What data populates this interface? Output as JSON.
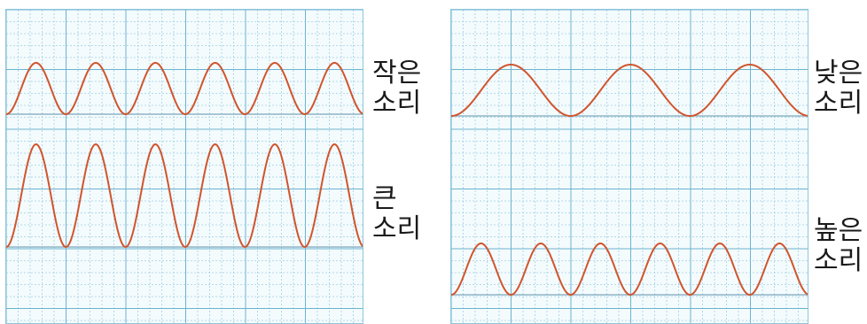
{
  "colors": {
    "grid_minor": "#9fd0e3",
    "grid_major": "#6bb3cf",
    "baseline": "#7aa6bb",
    "wave": "#d0552e",
    "text": "#1a1a1a"
  },
  "left_panel": {
    "waves": [
      {
        "id": "quiet",
        "label_line1": "작은",
        "label_line2": "소리",
        "cycles": 6,
        "relative_amplitude": 0.5
      },
      {
        "id": "loud",
        "label_line1": "큰",
        "label_line2": "소리",
        "cycles": 6,
        "relative_amplitude": 1.0
      }
    ]
  },
  "right_panel": {
    "waves": [
      {
        "id": "low",
        "label_line1": "낮은",
        "label_line2": "소리",
        "cycles": 3,
        "relative_amplitude": 0.5
      },
      {
        "id": "high",
        "label_line1": "높은",
        "label_line2": "소리",
        "cycles": 6,
        "relative_amplitude": 0.5
      }
    ]
  }
}
